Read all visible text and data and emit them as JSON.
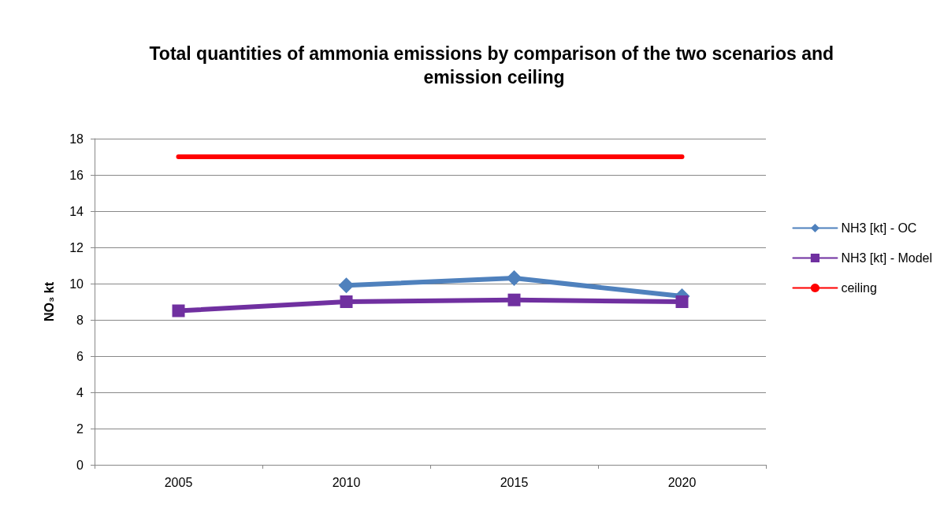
{
  "chart_data": {
    "type": "line",
    "title": "Total quantities of ammonia emissions by comparison of the two scenarios and emission ceiling",
    "ylabel": "NO₃ kt",
    "categories": [
      "2005",
      "2010",
      "2015",
      "2020"
    ],
    "series": [
      {
        "name": "NH3 [kt] - OC",
        "color": "#4f81bd",
        "marker": "diamond",
        "values": [
          null,
          9.9,
          10.3,
          9.3
        ]
      },
      {
        "name": "NH3 [kt] - Model",
        "color": "#7030a0",
        "marker": "square",
        "values": [
          8.5,
          9.0,
          9.1,
          9.0
        ]
      },
      {
        "name": "ceiling",
        "color": "#ff0000",
        "marker": "none",
        "values": [
          17,
          17,
          17,
          17
        ]
      }
    ],
    "ylim": [
      0,
      18
    ],
    "yticks": [
      0,
      2,
      4,
      6,
      8,
      10,
      12,
      14,
      16,
      18
    ],
    "grid": "y",
    "legend": "right",
    "line_style": "solid"
  }
}
